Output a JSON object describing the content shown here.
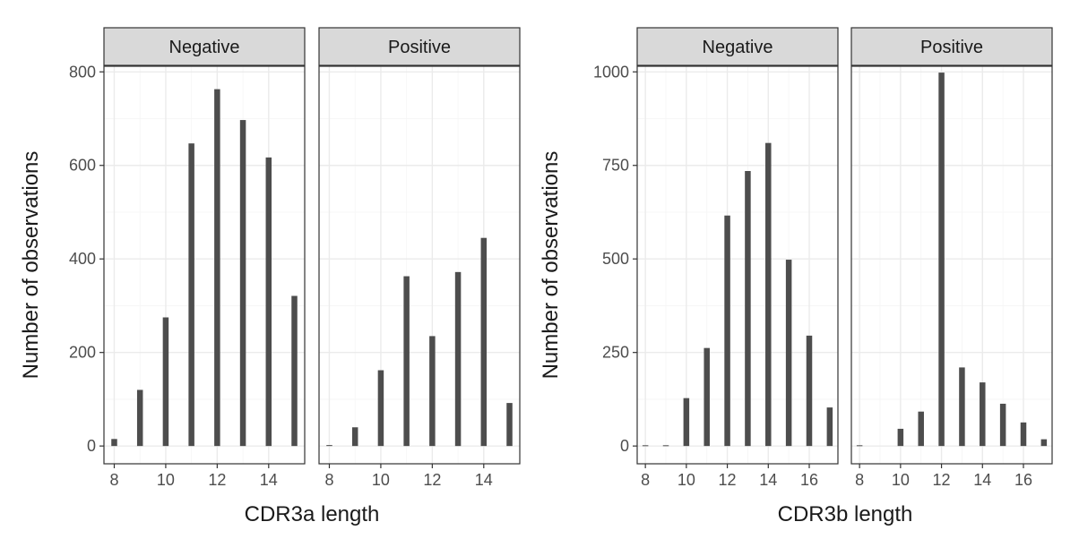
{
  "chart_data": [
    {
      "type": "bar",
      "xlabel": "CDR3a length",
      "ylabel": "Number of observations",
      "xlim": [
        7.6,
        15.4
      ],
      "ylim": [
        0,
        800
      ],
      "xticks": [
        8,
        10,
        12,
        14
      ],
      "yticks": [
        0,
        200,
        400,
        600,
        800
      ],
      "grid": true,
      "panels": [
        {
          "label": "Negative",
          "x": [
            8,
            9,
            10,
            11,
            12,
            13,
            14,
            15
          ],
          "values": [
            15,
            120,
            275,
            647,
            763,
            697,
            617,
            321
          ]
        },
        {
          "label": "Positive",
          "x": [
            8,
            9,
            10,
            11,
            12,
            13,
            14,
            15
          ],
          "values": [
            2,
            40,
            162,
            363,
            235,
            372,
            445,
            92
          ]
        }
      ]
    },
    {
      "type": "bar",
      "xlabel": "CDR3b length",
      "ylabel": "Number of observations",
      "xlim": [
        7.6,
        17.4
      ],
      "ylim": [
        0,
        1000
      ],
      "xticks": [
        8,
        10,
        12,
        14,
        16
      ],
      "yticks": [
        0,
        250,
        500,
        750,
        1000
      ],
      "grid": true,
      "panels": [
        {
          "label": "Negative",
          "x": [
            8,
            9,
            10,
            11,
            12,
            13,
            14,
            15,
            16,
            17
          ],
          "values": [
            2,
            2,
            128,
            262,
            616,
            735,
            810,
            498,
            295,
            103
          ]
        },
        {
          "label": "Positive",
          "x": [
            8,
            9,
            10,
            11,
            12,
            13,
            14,
            15,
            16,
            17
          ],
          "values": [
            2,
            0,
            46,
            92,
            998,
            210,
            170,
            113,
            63,
            18
          ]
        }
      ]
    }
  ],
  "colors": {
    "bar": "#4d4d4d",
    "strip": "#d9d9d9",
    "grid_major": "#ebebeb",
    "grid_minor": "#f5f5f5",
    "border": "#333333",
    "text": "#1a1a1a",
    "tick_label": "#4d4d4d"
  }
}
